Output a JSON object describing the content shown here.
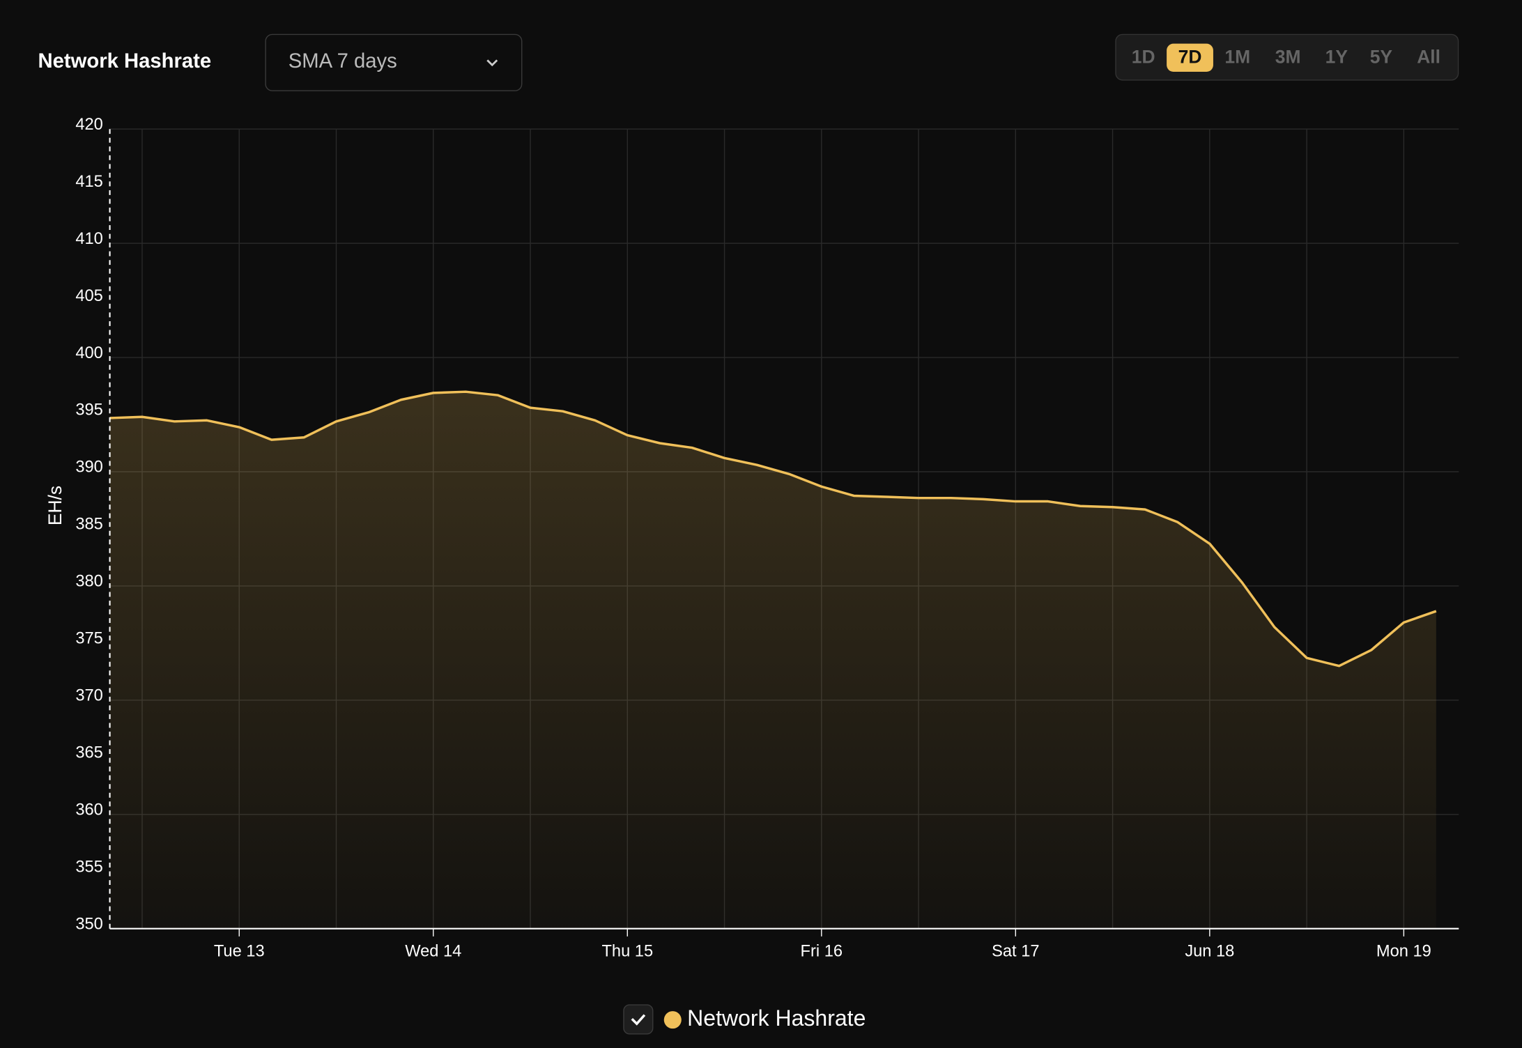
{
  "controls": {
    "dropdown": "SMA 7 days",
    "ranges": [
      "1D",
      "7D",
      "1M",
      "3M",
      "1Y",
      "5Y",
      "All"
    ],
    "active_range": "7D"
  },
  "chart_data": {
    "type": "area",
    "title": "Network Hashrate",
    "ylabel": "EH/s",
    "categories": [
      null,
      null,
      null,
      null,
      "Tue 13",
      null,
      null,
      null,
      null,
      null,
      "Wed 14",
      null,
      null,
      null,
      null,
      null,
      "Thu 15",
      null,
      null,
      null,
      null,
      null,
      "Fri 16",
      null,
      null,
      null,
      null,
      null,
      "Sat 17",
      null,
      null,
      null,
      null,
      null,
      "Jun 18",
      null,
      null,
      null,
      null,
      null,
      "Mon 19",
      null
    ],
    "series": [
      {
        "name": "Network Hashrate",
        "color": "#f0c05a",
        "values": [
          394.7,
          394.8,
          394.4,
          394.5,
          393.9,
          392.8,
          393.0,
          394.4,
          395.2,
          396.3,
          396.9,
          397.0,
          396.7,
          395.6,
          395.3,
          394.5,
          393.2,
          392.5,
          392.1,
          391.2,
          390.6,
          389.8,
          388.7,
          387.9,
          387.8,
          387.7,
          387.7,
          387.6,
          387.4,
          387.4,
          387.0,
          386.9,
          386.7,
          385.6,
          383.7,
          380.3,
          376.4,
          373.7,
          373.0,
          374.4,
          376.8,
          377.8
        ]
      }
    ],
    "ylim": [
      350,
      420
    ],
    "yticks": [
      350,
      355,
      360,
      365,
      370,
      375,
      380,
      385,
      390,
      395,
      400,
      405,
      410,
      415,
      420
    ],
    "grid": true
  }
}
